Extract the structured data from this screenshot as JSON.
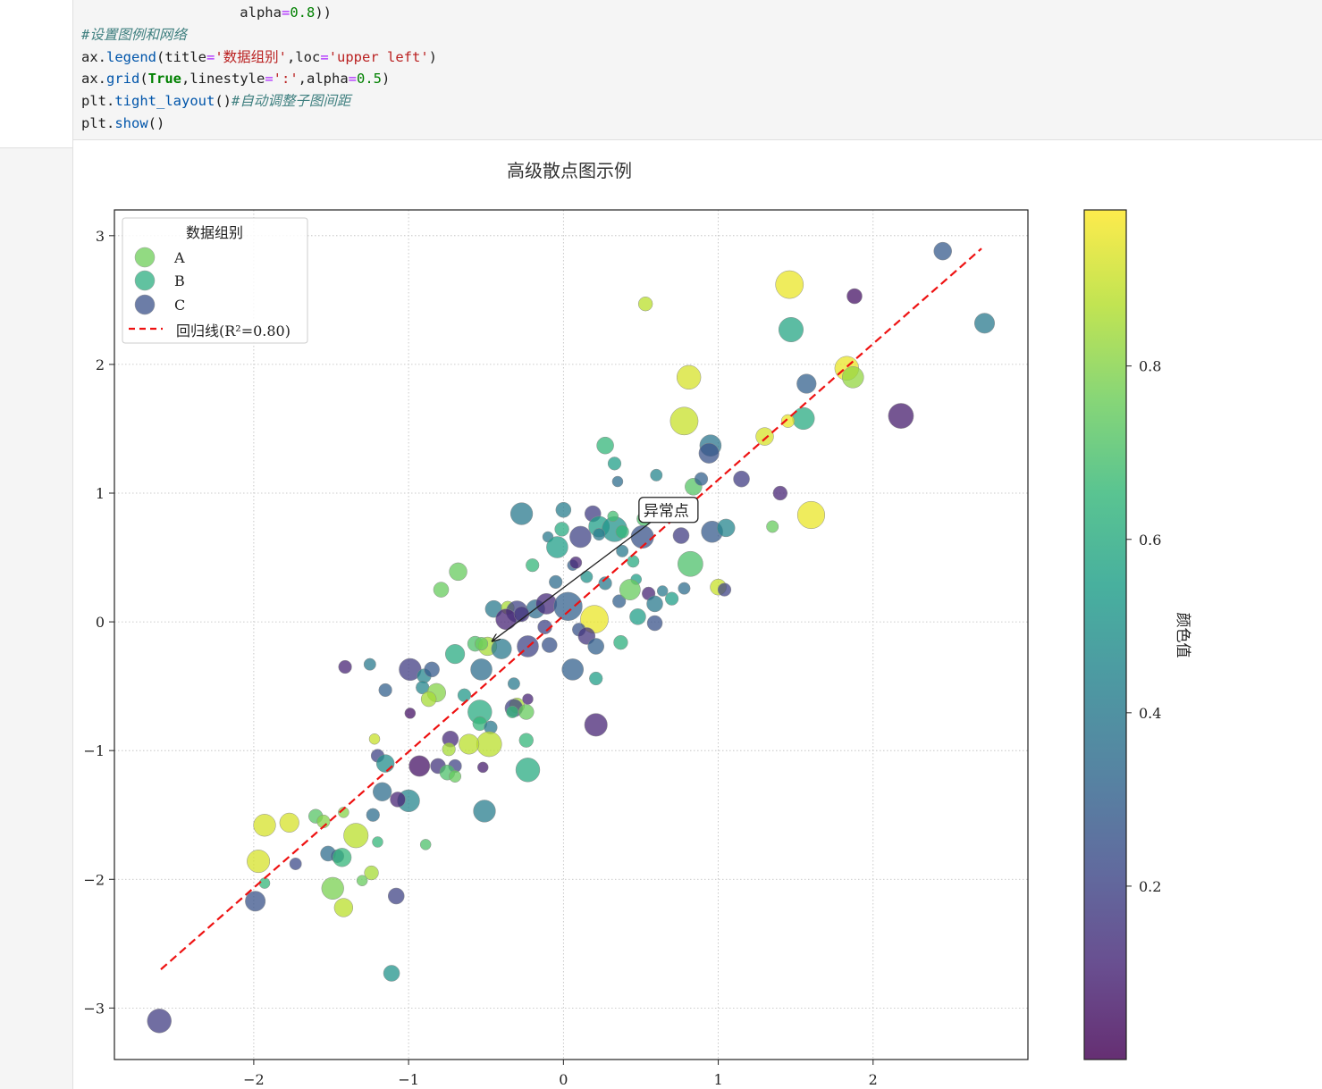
{
  "code": {
    "lines": [
      [
        {
          "t": "                   alpha",
          "c": ""
        },
        {
          "t": "=",
          "c": "op"
        },
        {
          "t": "0.8",
          "c": "num"
        },
        {
          "t": "))",
          "c": ""
        }
      ],
      [
        {
          "t": "#设置图例和网络",
          "c": "comment"
        }
      ],
      [
        {
          "t": "ax.",
          "c": ""
        },
        {
          "t": "legend",
          "c": "attr"
        },
        {
          "t": "(title",
          "c": ""
        },
        {
          "t": "=",
          "c": "op"
        },
        {
          "t": "'数据组别'",
          "c": "str"
        },
        {
          "t": ",loc",
          "c": ""
        },
        {
          "t": "=",
          "c": "op"
        },
        {
          "t": "'upper left'",
          "c": "str"
        },
        {
          "t": ")",
          "c": ""
        }
      ],
      [
        {
          "t": "ax.",
          "c": ""
        },
        {
          "t": "grid",
          "c": "attr"
        },
        {
          "t": "(",
          "c": ""
        },
        {
          "t": "True",
          "c": "kw"
        },
        {
          "t": ",linestyle",
          "c": ""
        },
        {
          "t": "=",
          "c": "op"
        },
        {
          "t": "':'",
          "c": "str"
        },
        {
          "t": ",alpha",
          "c": ""
        },
        {
          "t": "=",
          "c": "op"
        },
        {
          "t": "0.5",
          "c": "num"
        },
        {
          "t": ")",
          "c": ""
        }
      ],
      [
        {
          "t": "plt.",
          "c": ""
        },
        {
          "t": "tight_layout",
          "c": "attr"
        },
        {
          "t": "()",
          "c": ""
        },
        {
          "t": "#自动调整子图间距",
          "c": "comment"
        }
      ],
      [
        {
          "t": "plt.",
          "c": ""
        },
        {
          "t": "show",
          "c": "attr"
        },
        {
          "t": "()",
          "c": ""
        }
      ]
    ]
  },
  "colors": {
    "regression": "#ee1111",
    "arrow": "#222222",
    "viridis": [
      "#440154",
      "#482878",
      "#3e4a89",
      "#31688e",
      "#26828e",
      "#1f9e89",
      "#35b779",
      "#6dcd59",
      "#b4de2c",
      "#fde725"
    ]
  },
  "chart_data": {
    "type": "scatter",
    "title": "高级散点图示例",
    "xlim": [
      -2.9,
      3.0
    ],
    "ylim": [
      -3.4,
      3.2
    ],
    "xticks": [
      -2,
      -1,
      0,
      1,
      2
    ],
    "yticks": [
      -3,
      -2,
      -1,
      0,
      1,
      2,
      3
    ],
    "xtick_labels": [
      "−2",
      "−1",
      "0",
      "1",
      "2"
    ],
    "ytick_labels": [
      "−3",
      "−2",
      "−1",
      "0",
      "1",
      "2",
      "3"
    ],
    "grid": true,
    "legend": {
      "title": "数据组别",
      "placement": "upper left",
      "entries": [
        {
          "label": "A",
          "color_value": 0.78
        },
        {
          "label": "B",
          "color_value": 0.62
        },
        {
          "label": "C",
          "color_value": 0.25
        }
      ],
      "regression_label": "回归线(R²=0.80)"
    },
    "regression": {
      "x0": -2.6,
      "y0": -2.7,
      "x1": 2.7,
      "y1": 2.9
    },
    "annotation": {
      "text": "异常点",
      "text_x": 0.69,
      "text_y": 0.87,
      "point_x": -0.46,
      "point_y": -0.15
    },
    "colorbar": {
      "label": "颜色值",
      "ticks": [
        0.2,
        0.4,
        0.6,
        0.8
      ],
      "tick_labels": [
        "0.2",
        "0.4",
        "0.6",
        "0.8"
      ],
      "range": [
        0.0,
        0.98
      ]
    },
    "points": [
      [
        2.45,
        2.88,
        110,
        0.28
      ],
      [
        1.46,
        2.62,
        270,
        0.95
      ],
      [
        0.53,
        2.47,
        70,
        0.88
      ],
      [
        1.88,
        2.53,
        80,
        0.05
      ],
      [
        2.72,
        2.32,
        140,
        0.4
      ],
      [
        1.47,
        2.27,
        210,
        0.58
      ],
      [
        1.83,
        1.97,
        200,
        0.95
      ],
      [
        0.81,
        1.9,
        200,
        0.92
      ],
      [
        1.87,
        1.9,
        160,
        0.82
      ],
      [
        1.57,
        1.85,
        130,
        0.3
      ],
      [
        2.18,
        1.6,
        220,
        0.08
      ],
      [
        0.78,
        1.56,
        270,
        0.9
      ],
      [
        1.55,
        1.58,
        170,
        0.6
      ],
      [
        1.45,
        1.56,
        60,
        0.95
      ],
      [
        1.3,
        1.44,
        110,
        0.92
      ],
      [
        0.95,
        1.37,
        160,
        0.38
      ],
      [
        0.94,
        1.31,
        140,
        0.25
      ],
      [
        0.27,
        1.37,
        100,
        0.65
      ],
      [
        0.33,
        1.23,
        60,
        0.55
      ],
      [
        0.6,
        1.14,
        50,
        0.45
      ],
      [
        1.15,
        1.11,
        90,
        0.18
      ],
      [
        0.35,
        1.09,
        40,
        0.35
      ],
      [
        0.84,
        1.05,
        100,
        0.72
      ],
      [
        0.89,
        1.11,
        60,
        0.3
      ],
      [
        1.4,
        1.0,
        70,
        0.1
      ],
      [
        -0.27,
        0.84,
        170,
        0.4
      ],
      [
        0.0,
        0.87,
        80,
        0.42
      ],
      [
        0.19,
        0.84,
        90,
        0.18
      ],
      [
        0.52,
        0.8,
        70,
        0.7
      ],
      [
        0.81,
        0.87,
        80,
        0.55
      ],
      [
        1.6,
        0.83,
        260,
        0.95
      ],
      [
        0.23,
        0.74,
        150,
        0.55
      ],
      [
        0.33,
        0.72,
        220,
        0.5
      ],
      [
        0.32,
        0.82,
        40,
        0.68
      ],
      [
        0.38,
        0.7,
        60,
        0.65
      ],
      [
        0.51,
        0.66,
        180,
        0.25
      ],
      [
        0.76,
        0.67,
        90,
        0.18
      ],
      [
        0.96,
        0.7,
        160,
        0.28
      ],
      [
        1.05,
        0.73,
        110,
        0.45
      ],
      [
        1.35,
        0.74,
        50,
        0.75
      ],
      [
        -0.01,
        0.72,
        70,
        0.6
      ],
      [
        -0.1,
        0.66,
        40,
        0.4
      ],
      [
        0.11,
        0.66,
        160,
        0.2
      ],
      [
        0.23,
        0.68,
        50,
        0.4
      ],
      [
        0.38,
        0.55,
        50,
        0.4
      ],
      [
        -0.04,
        0.58,
        160,
        0.55
      ],
      [
        -0.2,
        0.44,
        60,
        0.65
      ],
      [
        0.06,
        0.44,
        40,
        0.3
      ],
      [
        0.08,
        0.46,
        50,
        0.1
      ],
      [
        0.45,
        0.47,
        50,
        0.6
      ],
      [
        0.82,
        0.45,
        220,
        0.7
      ],
      [
        -0.68,
        0.39,
        110,
        0.75
      ],
      [
        -0.79,
        0.25,
        80,
        0.75
      ],
      [
        -0.05,
        0.31,
        60,
        0.35
      ],
      [
        0.15,
        0.35,
        50,
        0.5
      ],
      [
        0.27,
        0.3,
        60,
        0.4
      ],
      [
        0.47,
        0.33,
        40,
        0.55
      ],
      [
        0.64,
        0.24,
        40,
        0.4
      ],
      [
        1.0,
        0.27,
        90,
        0.9
      ],
      [
        1.04,
        0.25,
        60,
        0.2
      ],
      [
        -0.45,
        0.1,
        100,
        0.4
      ],
      [
        -0.36,
        0.11,
        60,
        0.85
      ],
      [
        -0.3,
        0.08,
        160,
        0.2
      ],
      [
        -0.18,
        0.1,
        120,
        0.35
      ],
      [
        -0.11,
        0.14,
        150,
        0.12
      ],
      [
        0.03,
        0.12,
        280,
        0.3
      ],
      [
        0.2,
        0.02,
        270,
        0.95
      ],
      [
        0.36,
        0.16,
        60,
        0.3
      ],
      [
        0.43,
        0.25,
        150,
        0.75
      ],
      [
        0.55,
        0.22,
        60,
        0.1
      ],
      [
        0.59,
        0.14,
        90,
        0.4
      ],
      [
        0.7,
        0.18,
        60,
        0.55
      ],
      [
        0.78,
        0.26,
        50,
        0.35
      ],
      [
        -0.37,
        0.02,
        150,
        0.1
      ],
      [
        -0.27,
        0.06,
        80,
        0.15
      ],
      [
        -0.12,
        -0.04,
        70,
        0.2
      ],
      [
        0.1,
        -0.06,
        60,
        0.25
      ],
      [
        0.15,
        -0.11,
        100,
        0.15
      ],
      [
        0.21,
        -0.19,
        90,
        0.3
      ],
      [
        0.37,
        -0.16,
        70,
        0.62
      ],
      [
        0.59,
        -0.01,
        80,
        0.25
      ],
      [
        0.48,
        0.04,
        90,
        0.55
      ],
      [
        -0.57,
        -0.17,
        80,
        0.7
      ],
      [
        -0.49,
        -0.19,
        120,
        0.85
      ],
      [
        -0.4,
        -0.21,
        140,
        0.4
      ],
      [
        -0.23,
        -0.19,
        160,
        0.2
      ],
      [
        -0.09,
        -0.18,
        80,
        0.25
      ],
      [
        -0.7,
        -0.25,
        130,
        0.6
      ],
      [
        -0.53,
        -0.17,
        60,
        0.75
      ],
      [
        -0.99,
        -0.37,
        170,
        0.18
      ],
      [
        -0.9,
        -0.42,
        70,
        0.45
      ],
      [
        -0.85,
        -0.37,
        80,
        0.28
      ],
      [
        -0.53,
        -0.37,
        160,
        0.35
      ],
      [
        0.06,
        -0.37,
        160,
        0.3
      ],
      [
        0.21,
        -0.44,
        60,
        0.55
      ],
      [
        -1.41,
        -0.35,
        60,
        0.1
      ],
      [
        -1.25,
        -0.33,
        50,
        0.4
      ],
      [
        -0.91,
        -0.51,
        60,
        0.45
      ],
      [
        -0.82,
        -0.55,
        120,
        0.8
      ],
      [
        -0.87,
        -0.6,
        80,
        0.85
      ],
      [
        -0.64,
        -0.57,
        60,
        0.52
      ],
      [
        -0.32,
        -0.48,
        50,
        0.4
      ],
      [
        -1.15,
        -0.53,
        60,
        0.3
      ],
      [
        -0.54,
        -0.7,
        200,
        0.6
      ],
      [
        -0.3,
        -0.65,
        80,
        0.85
      ],
      [
        -0.32,
        -0.67,
        110,
        0.2
      ],
      [
        -0.24,
        -0.7,
        80,
        0.75
      ],
      [
        -0.33,
        -0.7,
        50,
        0.65
      ],
      [
        -0.23,
        -0.6,
        40,
        0.1
      ],
      [
        -0.99,
        -0.71,
        40,
        0.05
      ],
      [
        -0.54,
        -0.79,
        70,
        0.65
      ],
      [
        -0.47,
        -0.82,
        60,
        0.4
      ],
      [
        -0.48,
        -0.95,
        220,
        0.88
      ],
      [
        -0.61,
        -0.95,
        140,
        0.88
      ],
      [
        -0.73,
        -0.91,
        90,
        0.12
      ],
      [
        0.21,
        -0.8,
        180,
        0.1
      ],
      [
        -0.24,
        -0.92,
        70,
        0.65
      ],
      [
        -0.74,
        -0.99,
        60,
        0.85
      ],
      [
        -1.22,
        -0.91,
        40,
        0.9
      ],
      [
        -1.2,
        -1.04,
        60,
        0.2
      ],
      [
        -1.15,
        -1.1,
        110,
        0.48
      ],
      [
        -0.93,
        -1.12,
        150,
        0.05
      ],
      [
        -0.81,
        -1.12,
        80,
        0.15
      ],
      [
        -0.7,
        -1.12,
        60,
        0.2
      ],
      [
        -0.75,
        -1.17,
        80,
        0.7
      ],
      [
        -0.7,
        -1.2,
        50,
        0.75
      ],
      [
        -0.52,
        -1.13,
        40,
        0.08
      ],
      [
        -0.23,
        -1.15,
        200,
        0.6
      ],
      [
        -1.17,
        -1.32,
        120,
        0.35
      ],
      [
        -1.0,
        -1.39,
        170,
        0.45
      ],
      [
        -1.07,
        -1.38,
        80,
        0.1
      ],
      [
        -0.51,
        -1.47,
        170,
        0.42
      ],
      [
        -1.42,
        -1.48,
        40,
        0.8
      ],
      [
        -1.6,
        -1.51,
        70,
        0.72
      ],
      [
        -1.55,
        -1.55,
        60,
        0.8
      ],
      [
        -1.77,
        -1.56,
        130,
        0.92
      ],
      [
        -1.93,
        -1.58,
        170,
        0.92
      ],
      [
        -1.23,
        -1.5,
        60,
        0.35
      ],
      [
        -0.89,
        -1.73,
        40,
        0.7
      ],
      [
        -1.34,
        -1.66,
        210,
        0.88
      ],
      [
        -1.2,
        -1.71,
        40,
        0.65
      ],
      [
        -1.52,
        -1.8,
        80,
        0.35
      ],
      [
        -1.46,
        -1.82,
        60,
        0.3
      ],
      [
        -1.43,
        -1.83,
        120,
        0.65
      ],
      [
        -1.97,
        -1.86,
        180,
        0.92
      ],
      [
        -1.73,
        -1.88,
        50,
        0.22
      ],
      [
        -1.24,
        -1.95,
        70,
        0.85
      ],
      [
        -1.93,
        -2.03,
        40,
        0.65
      ],
      [
        -1.3,
        -2.01,
        40,
        0.75
      ],
      [
        -1.49,
        -2.07,
        170,
        0.78
      ],
      [
        -1.42,
        -2.22,
        120,
        0.88
      ],
      [
        -1.08,
        -2.13,
        90,
        0.2
      ],
      [
        -1.99,
        -2.17,
        140,
        0.25
      ],
      [
        -1.11,
        -2.73,
        90,
        0.5
      ],
      [
        -2.61,
        -3.1,
        200,
        0.18
      ]
    ]
  }
}
